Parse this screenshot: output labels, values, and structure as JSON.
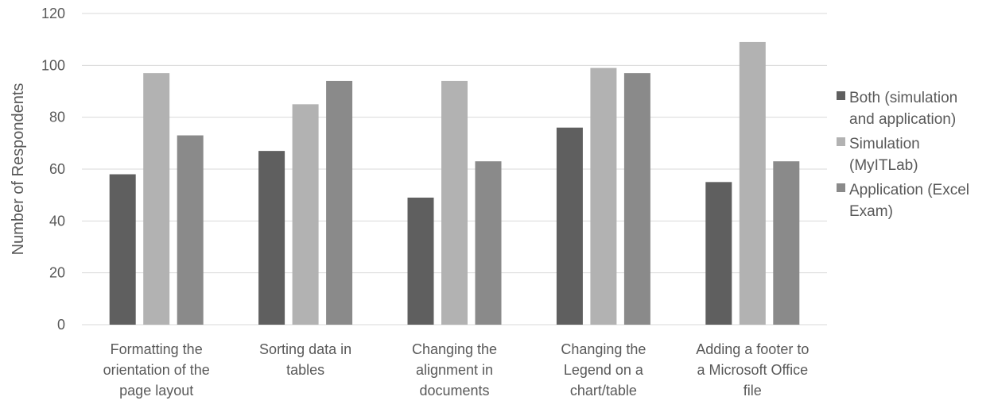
{
  "chart_data": {
    "type": "bar",
    "title": "",
    "xlabel": "",
    "ylabel": "Number of Respondents",
    "ylim": [
      0,
      120
    ],
    "yticks": [
      0,
      20,
      40,
      60,
      80,
      100,
      120
    ],
    "grid": true,
    "legend_position": "right",
    "categories": [
      [
        "Formatting the",
        "orientation of the",
        "page layout"
      ],
      [
        "Sorting data in",
        "tables"
      ],
      [
        "Changing the",
        "alignment in",
        "documents"
      ],
      [
        "Changing the",
        "Legend on a",
        "chart/table"
      ],
      [
        "Adding a footer to",
        "a Microsoft Office",
        "file"
      ]
    ],
    "series": [
      {
        "name": [
          "Both (simulation",
          "and application)"
        ],
        "color": "#5f5f5f",
        "values": [
          58,
          67,
          49,
          76,
          55
        ]
      },
      {
        "name": [
          "Simulation",
          "(MyITLab)"
        ],
        "color": "#b2b2b2",
        "values": [
          97,
          85,
          94,
          99,
          109
        ]
      },
      {
        "name": [
          "Application (Excel",
          "Exam)"
        ],
        "color": "#8a8a8a",
        "values": [
          73,
          94,
          63,
          97,
          63
        ]
      }
    ]
  }
}
